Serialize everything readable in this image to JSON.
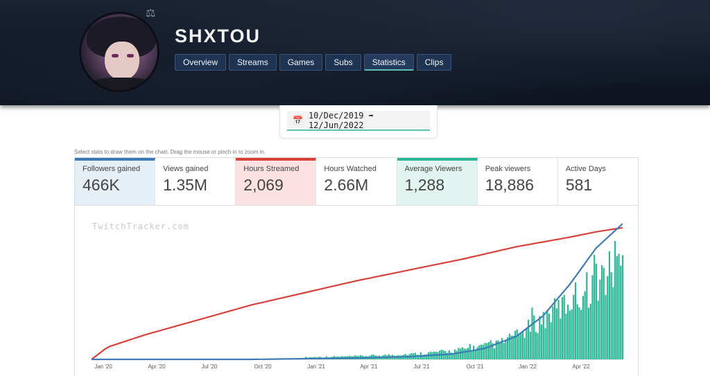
{
  "channel": {
    "name": "SHXTOU"
  },
  "tabs": [
    {
      "label": "Overview"
    },
    {
      "label": "Streams"
    },
    {
      "label": "Games"
    },
    {
      "label": "Subs"
    },
    {
      "label": "Statistics"
    },
    {
      "label": "Clips"
    }
  ],
  "date_range": {
    "text": "10/Dec/2019 ➡ 12/Jun/2022"
  },
  "hint": "Select stats to draw them on the chart. Drag the mouse or pinch in to zoom in.",
  "stats": [
    {
      "label": "Followers gained",
      "value": "466K"
    },
    {
      "label": "Views gained",
      "value": "1.35M"
    },
    {
      "label": "Hours Streamed",
      "value": "2,069"
    },
    {
      "label": "Hours Watched",
      "value": "2.66M"
    },
    {
      "label": "Average Viewers",
      "value": "1,288"
    },
    {
      "label": "Peak viewers",
      "value": "18,886"
    },
    {
      "label": "Active Days",
      "value": "581"
    }
  ],
  "watermark": "TwitchTracker.com",
  "colors": {
    "blue": "#3a7bb5",
    "red": "#d9403a",
    "teal": "#2bb796"
  },
  "chart_data": {
    "type": "line",
    "x_ticks": [
      "Jan '20",
      "Apr '20",
      "Jul '20",
      "Oct '20",
      "Jan '21",
      "Apr '21",
      "Jul '21",
      "Oct '21",
      "Jan '22",
      "Apr '22"
    ],
    "series": [
      {
        "color": "#d9403a",
        "kind": "line",
        "points": [
          [
            0,
            0.0
          ],
          [
            0.03,
            0.09
          ],
          [
            0.1,
            0.18
          ],
          [
            0.2,
            0.29
          ],
          [
            0.3,
            0.4
          ],
          [
            0.4,
            0.49
          ],
          [
            0.5,
            0.58
          ],
          [
            0.6,
            0.66
          ],
          [
            0.7,
            0.74
          ],
          [
            0.8,
            0.83
          ],
          [
            0.9,
            0.9
          ],
          [
            0.95,
            0.94
          ],
          [
            1.0,
            0.97
          ]
        ]
      },
      {
        "color": "#3a7bb5",
        "kind": "line",
        "points": [
          [
            0,
            0.0
          ],
          [
            0.3,
            0.0
          ],
          [
            0.5,
            0.01
          ],
          [
            0.6,
            0.02
          ],
          [
            0.68,
            0.04
          ],
          [
            0.74,
            0.08
          ],
          [
            0.8,
            0.17
          ],
          [
            0.85,
            0.32
          ],
          [
            0.9,
            0.55
          ],
          [
            0.95,
            0.82
          ],
          [
            1.0,
            1.0
          ]
        ]
      },
      {
        "color": "#2bb796",
        "kind": "bar",
        "envelope": [
          [
            0.4,
            0.02
          ],
          [
            0.5,
            0.03
          ],
          [
            0.6,
            0.05
          ],
          [
            0.68,
            0.08
          ],
          [
            0.72,
            0.11
          ],
          [
            0.76,
            0.14
          ],
          [
            0.8,
            0.22
          ],
          [
            0.84,
            0.35
          ],
          [
            0.88,
            0.48
          ],
          [
            0.92,
            0.62
          ],
          [
            0.96,
            0.78
          ],
          [
            1.0,
            0.9
          ]
        ]
      }
    ]
  }
}
